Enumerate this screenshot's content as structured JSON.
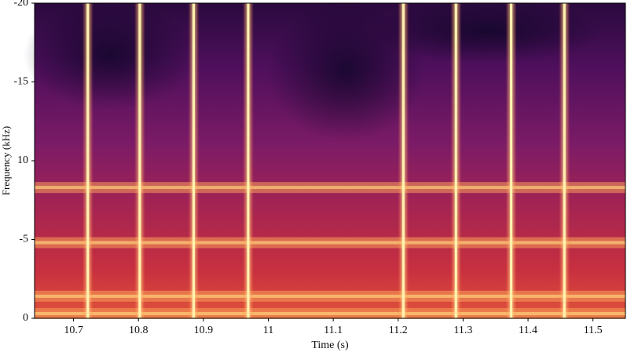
{
  "chart_data": {
    "type": "spectrogram",
    "x_label": "Time (s)",
    "y_label": "Frequency (kHz)",
    "xlim": [
      10.64,
      11.55
    ],
    "ylim": [
      0,
      20
    ],
    "xticks": [
      10.7,
      10.8,
      10.9,
      11,
      11.1,
      11.2,
      11.3,
      11.4,
      11.5
    ],
    "yticks": [
      {
        "value": 20,
        "label": "-20"
      },
      {
        "value": 15,
        "label": "-15"
      },
      10,
      {
        "value": 5,
        "label": "-5"
      },
      0
    ],
    "bursts": [
      10.722,
      10.802,
      10.885,
      10.969,
      11.208,
      11.289,
      11.374,
      11.456
    ],
    "bands": [
      0.3,
      1.4,
      4.8,
      8.3
    ]
  }
}
